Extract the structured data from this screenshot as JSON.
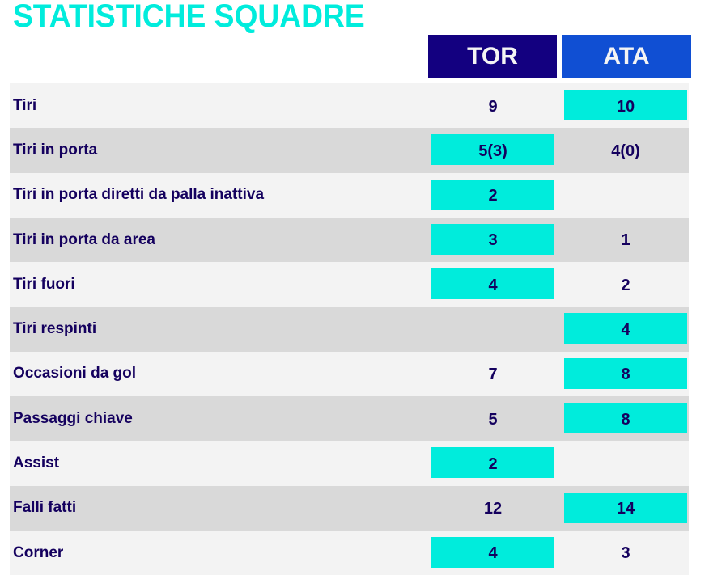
{
  "title": "STATISTICHE SQUADRE",
  "teams": {
    "home": "TOR",
    "away": "ATA"
  },
  "colors": {
    "title": "#00ecdc",
    "home_header": "#130080",
    "away_header": "#104fd3",
    "highlight": "#00ecdc",
    "text": "#14005e"
  },
  "rows": [
    {
      "label": "Tiri",
      "home": "9",
      "away": "10",
      "highlight": "away"
    },
    {
      "label": "Tiri in porta",
      "home": "5(3)",
      "away": "4(0)",
      "highlight": "home"
    },
    {
      "label": "Tiri in porta diretti da palla inattiva",
      "home": "2",
      "away": "",
      "highlight": "home"
    },
    {
      "label": "Tiri in porta da area",
      "home": "3",
      "away": "1",
      "highlight": "home"
    },
    {
      "label": "Tiri fuori",
      "home": "4",
      "away": "2",
      "highlight": "home"
    },
    {
      "label": "Tiri respinti",
      "home": "",
      "away": "4",
      "highlight": "away"
    },
    {
      "label": "Occasioni da gol",
      "home": "7",
      "away": "8",
      "highlight": "away"
    },
    {
      "label": "Passaggi chiave",
      "home": "5",
      "away": "8",
      "highlight": "away"
    },
    {
      "label": "Assist",
      "home": "2",
      "away": "",
      "highlight": "home"
    },
    {
      "label": "Falli fatti",
      "home": "12",
      "away": "14",
      "highlight": "away"
    },
    {
      "label": "Corner",
      "home": "4",
      "away": "3",
      "highlight": "home"
    }
  ]
}
